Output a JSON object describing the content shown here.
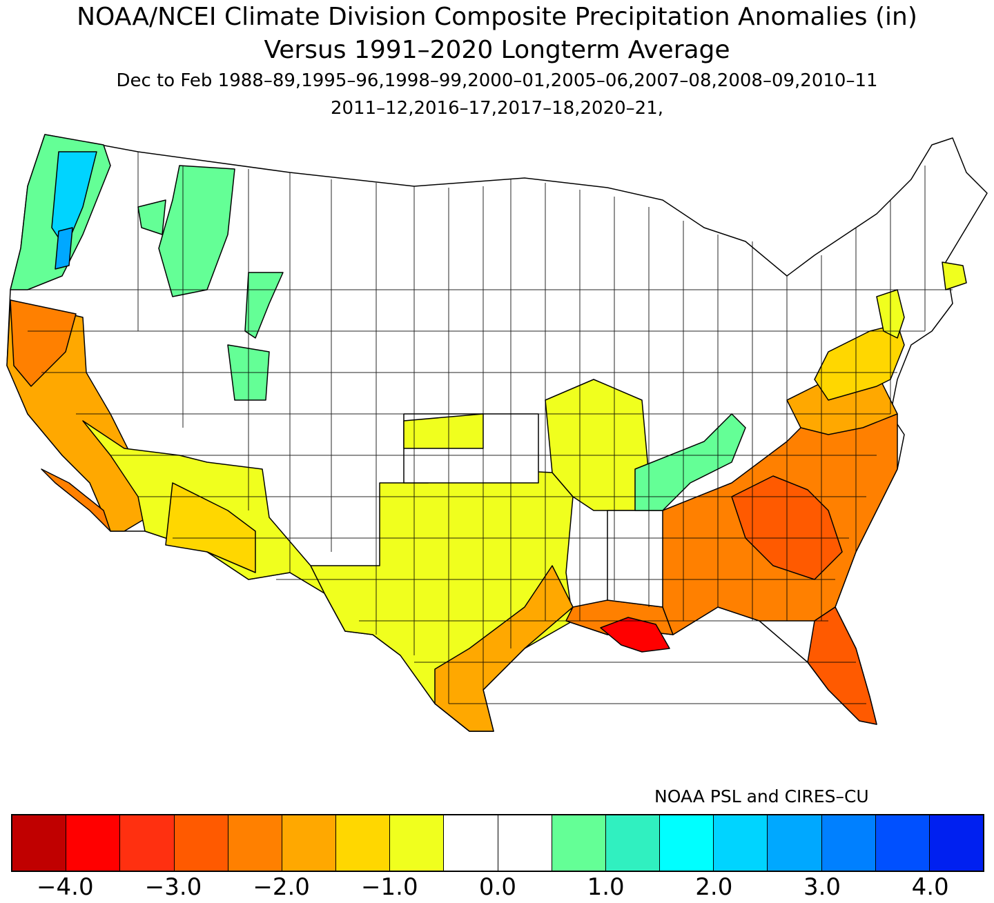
{
  "title": {
    "line1": "NOAA/NCEI Climate Division Composite Precipitation Anomalies (in)",
    "line2": "Versus 1991–2020 Longterm Average",
    "line3": "Dec to Feb  1988–89,1995–96,1998–99,2000–01,2005–06,2007–08,2008–09,2010–11",
    "line4": "2011–12,2016–17,2017–18,2020–21,"
  },
  "credit": "NOAA PSL and CIRES–CU",
  "colorbar": {
    "colors": [
      "#c00000",
      "#ff0000",
      "#ff3010",
      "#ff5a00",
      "#ff8000",
      "#ffa800",
      "#ffd700",
      "#f0ff1e",
      "#ffffff",
      "#ffffff",
      "#64ff96",
      "#30f0c0",
      "#00ffff",
      "#00d4ff",
      "#00a8ff",
      "#0080ff",
      "#0050ff",
      "#0020f0"
    ],
    "tick_labels": [
      "−4.0",
      "−3.0",
      "−2.0",
      "−1.0",
      "0.0",
      "1.0",
      "2.0",
      "3.0",
      "4.0"
    ],
    "tick_values": [
      -4.0,
      -3.0,
      -2.0,
      -1.0,
      0.0,
      1.0,
      2.0,
      3.0,
      4.0
    ],
    "range": [
      -4.5,
      4.5
    ],
    "step": 0.5
  },
  "map_regions": [
    {
      "name": "pacific-northwest-coast",
      "anomaly_class": "wetter 0.5 to 1.5",
      "color": "#64ff96"
    },
    {
      "name": "puget-sound",
      "anomaly_class": "wetter 1.5 to 3.0",
      "color": "#00a8ff"
    },
    {
      "name": "northern-idaho-montana",
      "anomaly_class": "wetter 0.5 to 1.0",
      "color": "#64ff96"
    },
    {
      "name": "tennessee-kentucky",
      "anomaly_class": "wetter 0.5 to 1.0",
      "color": "#64ff96"
    },
    {
      "name": "california",
      "anomaly_class": "drier -1.0 to -2.5",
      "color": "#ffa800"
    },
    {
      "name": "southwest",
      "anomaly_class": "drier 0 to -1.5",
      "color": "#f0ff1e"
    },
    {
      "name": "texas-southern-plains",
      "anomaly_class": "drier -0.5 to -2.0",
      "color": "#f0ff1e"
    },
    {
      "name": "southeast",
      "anomaly_class": "drier -2.0 to -3.0",
      "color": "#ff8000"
    },
    {
      "name": "louisiana-delta",
      "anomaly_class": "drier below -3.5",
      "color": "#ff0000"
    },
    {
      "name": "mid-atlantic",
      "anomaly_class": "drier -0.5 to -1.5",
      "color": "#ffd700"
    },
    {
      "name": "florida",
      "anomaly_class": "drier -2.0 to -3.0",
      "color": "#ff5a00"
    },
    {
      "name": "massachusetts",
      "anomaly_class": "drier 0 to -0.5",
      "color": "#f0ff1e"
    }
  ]
}
